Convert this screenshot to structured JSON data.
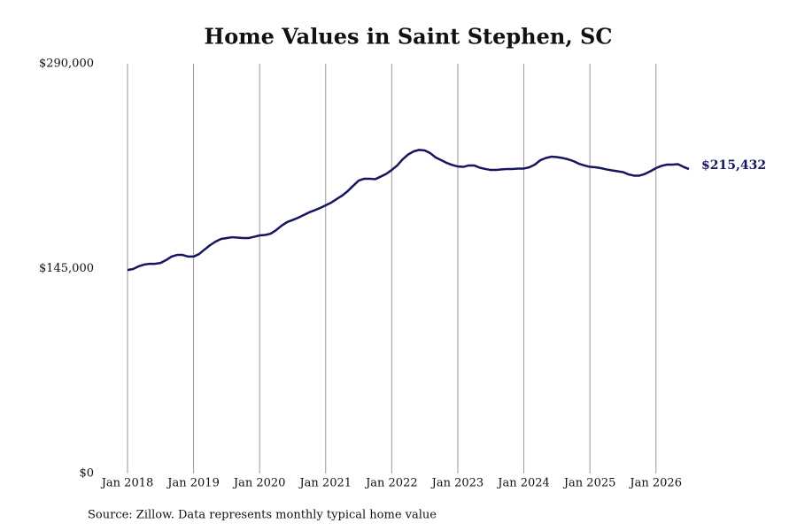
{
  "chart_data": {
    "type": "line",
    "title": "Home Values in Saint Stephen, SC",
    "note": "Source: Zillow. Data represents monthly typical home value",
    "x": [
      "2018-01",
      "2018-02",
      "2018-03",
      "2018-04",
      "2018-05",
      "2018-06",
      "2018-07",
      "2018-08",
      "2018-09",
      "2018-10",
      "2018-11",
      "2018-12",
      "2019-01",
      "2019-02",
      "2019-03",
      "2019-04",
      "2019-05",
      "2019-06",
      "2019-07",
      "2019-08",
      "2019-09",
      "2019-10",
      "2019-11",
      "2019-12",
      "2020-01",
      "2020-02",
      "2020-03",
      "2020-04",
      "2020-05",
      "2020-06",
      "2020-07",
      "2020-08",
      "2020-09",
      "2020-10",
      "2020-11",
      "2020-12",
      "2021-01",
      "2021-02",
      "2021-03",
      "2021-04",
      "2021-05",
      "2021-06",
      "2021-07",
      "2021-08",
      "2021-09",
      "2021-10",
      "2021-11",
      "2021-12",
      "2022-01",
      "2022-02",
      "2022-03",
      "2022-04",
      "2022-05",
      "2022-06",
      "2022-07",
      "2022-08",
      "2022-09",
      "2022-10",
      "2022-11",
      "2022-12",
      "2023-01",
      "2023-02",
      "2023-03",
      "2023-04",
      "2023-05",
      "2023-06",
      "2023-07",
      "2023-08",
      "2023-09",
      "2023-10",
      "2023-11",
      "2023-12",
      "2024-01",
      "2024-02",
      "2024-03",
      "2024-04",
      "2024-05",
      "2024-06",
      "2024-07",
      "2024-08",
      "2024-09",
      "2024-10",
      "2024-11",
      "2024-12",
      "2025-01",
      "2025-02",
      "2025-03",
      "2025-04",
      "2025-05",
      "2025-06",
      "2025-07",
      "2025-08",
      "2025-09",
      "2025-10",
      "2025-11",
      "2025-12",
      "2026-01",
      "2026-02",
      "2026-03",
      "2026-04",
      "2026-05",
      "2026-06",
      "2026-07"
    ],
    "series": [
      {
        "name": "Saint Stephen, SC",
        "color": "#161660",
        "values": [
          144000,
          144700,
          146600,
          147800,
          148400,
          148400,
          149000,
          151000,
          153500,
          154700,
          154700,
          153500,
          153500,
          155300,
          158500,
          161600,
          164100,
          166000,
          166600,
          167200,
          166900,
          166600,
          166600,
          167500,
          168500,
          168800,
          169700,
          172200,
          175400,
          177900,
          179400,
          181000,
          182900,
          184800,
          186300,
          187900,
          189800,
          191700,
          194200,
          196700,
          199800,
          203600,
          207300,
          208600,
          208600,
          208300,
          210100,
          212000,
          214800,
          218000,
          222400,
          225800,
          228000,
          229000,
          228600,
          226700,
          223600,
          221700,
          219800,
          218300,
          217300,
          217000,
          218000,
          218000,
          216400,
          215500,
          214800,
          214800,
          215200,
          215500,
          215500,
          215800,
          215800,
          216700,
          218600,
          221700,
          223300,
          224200,
          223900,
          223300,
          222400,
          221100,
          219200,
          218000,
          217000,
          216700,
          216100,
          215200,
          214500,
          213900,
          213300,
          211700,
          210800,
          210800,
          212000,
          213900,
          216100,
          217700,
          218600,
          218600,
          218900,
          217000,
          215432
        ],
        "value_labels": [
          null,
          null,
          null,
          null,
          null,
          null,
          null,
          null,
          null,
          null,
          null,
          null,
          null,
          null,
          null,
          null,
          null,
          null,
          null,
          null,
          null,
          null,
          null,
          null,
          null,
          null,
          null,
          null,
          null,
          null,
          null,
          null,
          null,
          null,
          null,
          null,
          null,
          null,
          null,
          null,
          null,
          null,
          null,
          null,
          null,
          null,
          null,
          null,
          null,
          null,
          null,
          null,
          null,
          null,
          null,
          null,
          null,
          null,
          null,
          null,
          null,
          null,
          null,
          null,
          null,
          null,
          null,
          null,
          null,
          null,
          null,
          null,
          null,
          null,
          null,
          null,
          null,
          null,
          null,
          null,
          null,
          null,
          null,
          null,
          null,
          null,
          null,
          null,
          null,
          null,
          null,
          null,
          null,
          null,
          null,
          null,
          null,
          null,
          null,
          null,
          null,
          null,
          "$215,432"
        ]
      }
    ],
    "xlim": [
      "2018-01",
      "2026-07"
    ],
    "xticks": [
      {
        "value": "2018-01",
        "label": "Jan 2018"
      },
      {
        "value": "2019-01",
        "label": "Jan 2019"
      },
      {
        "value": "2020-01",
        "label": "Jan 2020"
      },
      {
        "value": "2021-01",
        "label": "Jan 2021"
      },
      {
        "value": "2022-01",
        "label": "Jan 2022"
      },
      {
        "value": "2023-01",
        "label": "Jan 2023"
      },
      {
        "value": "2024-01",
        "label": "Jan 2024"
      },
      {
        "value": "2025-01",
        "label": "Jan 2025"
      },
      {
        "value": "2026-01",
        "label": "Jan 2026"
      }
    ],
    "ylim": [
      0,
      290000
    ],
    "yticks": [
      {
        "value": 0,
        "label": "$0"
      },
      {
        "value": 145000,
        "label": "$145,000"
      },
      {
        "value": 290000,
        "label": "$290,000"
      }
    ],
    "grid": "x"
  }
}
